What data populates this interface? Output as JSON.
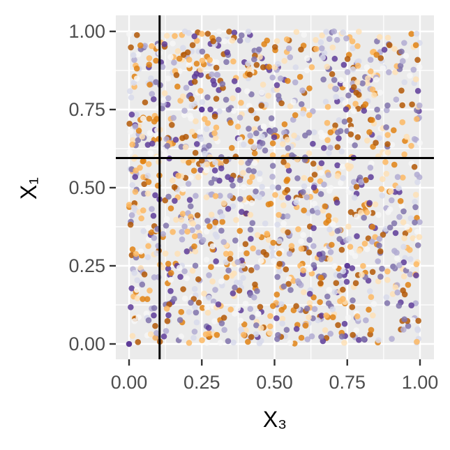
{
  "chart_data": {
    "type": "scatter",
    "xlabel": "X₃",
    "ylabel": "X₁",
    "xlim": [
      0,
      1
    ],
    "ylim": [
      0,
      1
    ],
    "x_ticks": [
      "0.00",
      "0.25",
      "0.50",
      "0.75",
      "1.00"
    ],
    "y_ticks": [
      "0.00",
      "0.25",
      "0.50",
      "0.75",
      "1.00"
    ],
    "x_tick_values": [
      0,
      0.25,
      0.5,
      0.75,
      1.0
    ],
    "y_tick_values": [
      0,
      0.25,
      0.5,
      0.75,
      1.0
    ],
    "grid": true,
    "legend": "none",
    "reference_lines": {
      "vertical_x": 0.105,
      "horizontal_y": 0.595
    },
    "point_count": 1500,
    "color_scale": [
      "#5e3c99",
      "#8073ac",
      "#b2abd2",
      "#d8daeb",
      "#f7f7f7",
      "#fee0b6",
      "#fdb863",
      "#e08214",
      "#b35806"
    ],
    "highlighted_points": [
      {
        "x": 0.0,
        "y": 0.0,
        "color": "#5e3c99"
      },
      {
        "x": 0.75,
        "y": 0.25,
        "color": "#5e3c99"
      },
      {
        "x": 0.25,
        "y": 0.75,
        "color": "#5e3c99"
      }
    ],
    "colors": {
      "panel_background": "#ebebeb",
      "grid_major": "#ffffff",
      "reference_line": "#000000"
    }
  }
}
